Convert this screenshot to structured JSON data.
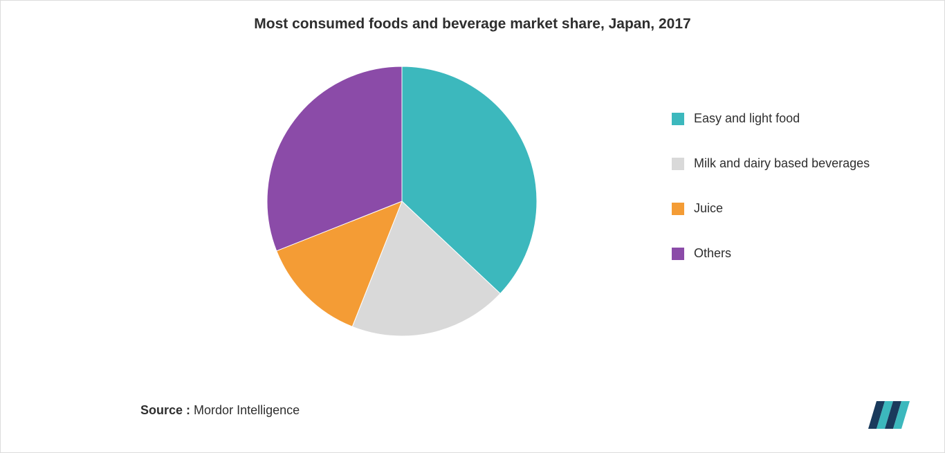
{
  "chart": {
    "type": "pie",
    "title": "Most consumed foods and beverage market share, Japan, 2017",
    "title_fontsize": 21,
    "title_color": "#2e2e2e",
    "background_color": "#ffffff",
    "slices": [
      {
        "label": "Easy and light food",
        "value": 37,
        "color": "#3cb8bd"
      },
      {
        "label": "Milk and dairy based beverages",
        "value": 19,
        "color": "#d9d9d9"
      },
      {
        "label": "Juice",
        "value": 13,
        "color": "#f49c35"
      },
      {
        "label": "Others",
        "value": 31,
        "color": "#8b4ba8"
      }
    ],
    "start_angle_deg": 0,
    "legend": {
      "position": "right",
      "fontsize": 18,
      "text_color": "#2e2e2e",
      "swatch_size": 18,
      "row_gap": 44
    },
    "source_label": "Source :",
    "source_value": "Mordor Intelligence",
    "source_fontsize": 18,
    "brand": {
      "primary_color": "#1a3a5c",
      "accent_color": "#3cb8bd"
    }
  }
}
